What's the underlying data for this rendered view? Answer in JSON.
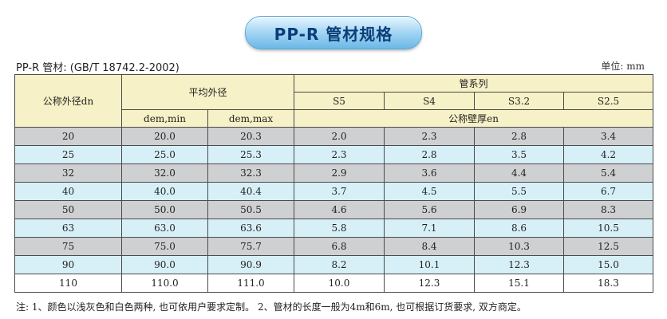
{
  "banner": {
    "title": "PP-R 管材规格"
  },
  "subtitle": "PP-R 管材: (GB/T 18742.2-2002)",
  "unit": "单位: mm",
  "table": {
    "header": {
      "nominal_od": "公称外径dn",
      "avg_od": "平均外径",
      "pipe_series": "管系列",
      "series": [
        "S5",
        "S4",
        "S3.2",
        "S2.5"
      ],
      "dem_min": "dem,min",
      "dem_max": "dem,max",
      "wall_thickness": "公称壁厚en"
    },
    "rows": [
      [
        "20",
        "20.0",
        "20.3",
        "2.0",
        "2.3",
        "2.8",
        "3.4"
      ],
      [
        "25",
        "25.0",
        "25.3",
        "2.3",
        "2.8",
        "3.5",
        "4.2"
      ],
      [
        "32",
        "32.0",
        "32.3",
        "2.9",
        "3.6",
        "4.4",
        "5.4"
      ],
      [
        "40",
        "40.0",
        "40.4",
        "3.7",
        "4.5",
        "5.5",
        "6.7"
      ],
      [
        "50",
        "50.0",
        "50.5",
        "4.6",
        "5.6",
        "6.9",
        "8.3"
      ],
      [
        "63",
        "63.0",
        "63.6",
        "5.8",
        "7.1",
        "8.6",
        "10.5"
      ],
      [
        "75",
        "75.0",
        "75.7",
        "6.8",
        "8.4",
        "10.3",
        "12.5"
      ],
      [
        "90",
        "90.0",
        "90.9",
        "8.2",
        "10.1",
        "12.3",
        "15.0"
      ],
      [
        "110",
        "110.0",
        "111.0",
        "10.0",
        "12.3",
        "15.1",
        "18.3"
      ]
    ]
  },
  "note": "注: 1、颜色以浅灰色和白色两种, 也可依用户要求定制。 2、管材的长度一般为4m和6m, 也可根据订货要求, 双方商定。",
  "colors": {
    "header_bg": "#f7f1c7",
    "row_gray": "#cfd0d2",
    "row_blue": "#d7f0f8",
    "banner_text": "#0b3d78"
  }
}
